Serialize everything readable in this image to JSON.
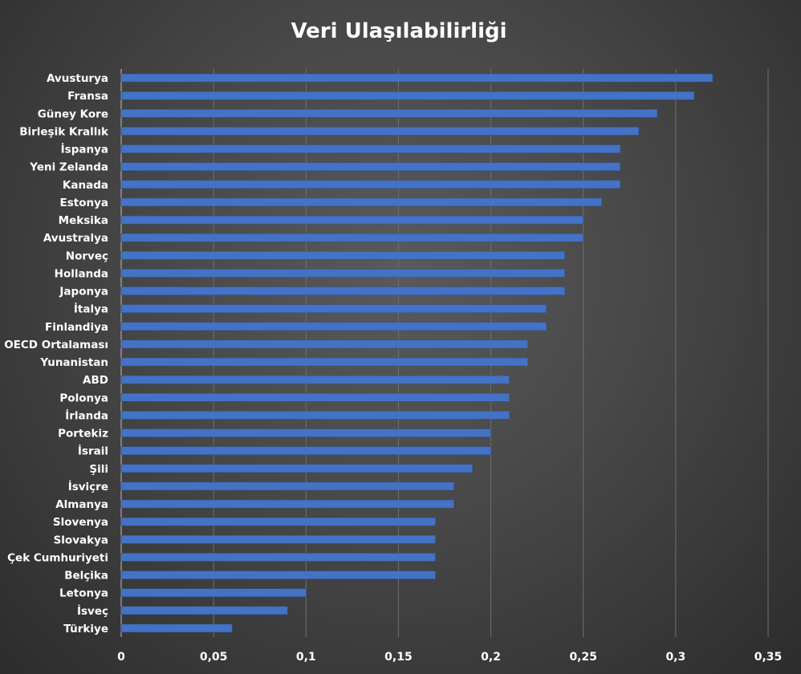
{
  "chart_data": {
    "type": "bar",
    "orientation": "horizontal",
    "title": "Veri Ulaşılabilirliği",
    "xlabel": "",
    "ylabel": "",
    "xlim": [
      0,
      0.35
    ],
    "x_ticks": [
      0,
      0.05,
      0.1,
      0.15,
      0.2,
      0.25,
      0.3,
      0.35
    ],
    "x_tick_labels": [
      "0",
      "0,05",
      "0,1",
      "0,15",
      "0,2",
      "0,25",
      "0,3",
      "0,35"
    ],
    "grid": "vertical",
    "bar_color": "#4472c4",
    "categories": [
      "Avusturya",
      "Fransa",
      "Güney Kore",
      "Birleşik Krallık",
      "İspanya",
      "Yeni Zelanda",
      "Kanada",
      "Estonya",
      "Meksika",
      "Avustralya",
      "Norveç",
      "Hollanda",
      "Japonya",
      "İtalya",
      "Finlandiya",
      "OECD Ortalaması",
      "Yunanistan",
      "ABD",
      "Polonya",
      "İrlanda",
      "Portekiz",
      "İsrail",
      "Şili",
      "İsviçre",
      "Almanya",
      "Slovenya",
      "Slovakya",
      "Çek Cumhuriyeti",
      "Belçika",
      "Letonya",
      "İsveç",
      "Türkiye"
    ],
    "values": [
      0.32,
      0.31,
      0.29,
      0.28,
      0.27,
      0.27,
      0.27,
      0.26,
      0.25,
      0.25,
      0.24,
      0.24,
      0.24,
      0.23,
      0.23,
      0.22,
      0.22,
      0.21,
      0.21,
      0.21,
      0.2,
      0.2,
      0.19,
      0.18,
      0.18,
      0.17,
      0.17,
      0.17,
      0.17,
      0.1,
      0.09,
      0.06
    ]
  }
}
